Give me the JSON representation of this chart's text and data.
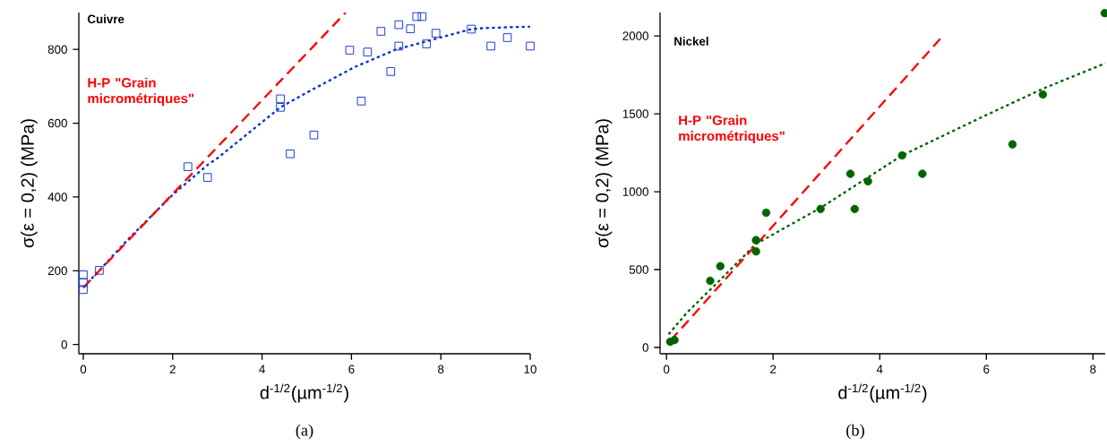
{
  "chart_data": [
    {
      "type": "scatter",
      "xlabel": "d$^{-1/2}$(µm$^{-1/2}$)",
      "ylabel": "σ(ε = 0,2) (MPa)",
      "xlim": [
        -0.1,
        10
      ],
      "ylim": [
        -25,
        900
      ],
      "xticks": [
        0,
        2,
        4,
        6,
        8,
        10
      ],
      "yticks": [
        0,
        200,
        400,
        600,
        800
      ],
      "annotations": [
        "Cuivre",
        "(a)"
      ],
      "series": [
        {
          "marker": "square",
          "color": "#1a3fd4",
          "x": [
            0,
            0,
            0,
            0.36,
            2.34,
            2.78,
            4.41,
            4.41,
            4.63,
            5.16,
            5.96,
            6.22,
            6.36,
            6.66,
            6.88,
            7.06,
            7.06,
            7.32,
            7.46,
            7.58,
            7.68,
            7.89,
            8.68,
            9.12,
            9.49,
            10
          ],
          "values": [
            189,
            168,
            149,
            201,
            482,
            453,
            666,
            643,
            517,
            568,
            798,
            660,
            793,
            849,
            740,
            867,
            809,
            856,
            889,
            889,
            815,
            844,
            855,
            809,
            832,
            809
          ]
        },
        {
          "type": "line",
          "line_style": "dotted",
          "color": "#0033cc",
          "x": [
            0,
            0.36,
            1,
            2,
            2.78,
            3,
            4.41,
            5,
            6.07,
            7,
            7.65,
            8.68,
            9,
            10
          ],
          "values": [
            155,
            201,
            285,
            406,
            487,
            505,
            643,
            683,
            752,
            800,
            821,
            855,
            858,
            862
          ]
        },
        {
          "type": "line",
          "line_style": "dashed",
          "color": "#ff0000",
          "name": "H-P \"Grain micrométriques\"",
          "x": [
            0,
            5.87
          ],
          "values": [
            154,
            900
          ]
        }
      ]
    },
    {
      "type": "scatter",
      "xlabel": "d$^{-1/2}$(µm$^{-1/2}$)",
      "ylabel": "σ(ε = 0,2) (MPa)",
      "xlim": [
        -0.12,
        8.23
      ],
      "ylim": [
        -40,
        2150
      ],
      "xticks": [
        0,
        2,
        4,
        6,
        8
      ],
      "yticks": [
        0,
        500,
        1000,
        1500,
        2000
      ],
      "annotations": [
        "Nickel",
        "(b)"
      ],
      "series": [
        {
          "marker": "circle",
          "color": "#006400",
          "x": [
            0.07,
            0.15,
            0.82,
            1.01,
            1.68,
            1.68,
            1.87,
            2.89,
            3.45,
            3.53,
            3.78,
            4.42,
            4.8,
            6.49,
            7.06,
            8.22
          ],
          "values": [
            37,
            48,
            428,
            522,
            689,
            617,
            865,
            889,
            1115,
            889,
            1067,
            1233,
            1115,
            1304,
            1624,
            2146
          ]
        },
        {
          "type": "line",
          "line_style": "dotted",
          "color": "#006400",
          "x": [
            0.04,
            0.39,
            1.01,
            1.68,
            2.89,
            4.42,
            5.9,
            7.06,
            8.23
          ],
          "values": [
            85,
            226,
            435,
            665,
            896,
            1233,
            1476,
            1661,
            1824
          ]
        },
        {
          "type": "line",
          "line_style": "dashed",
          "color": "#ff0000",
          "name": "H-P \"Grain micrométriques\"",
          "x": [
            0.08,
            5.16
          ],
          "values": [
            46,
            1991
          ]
        }
      ]
    }
  ]
}
